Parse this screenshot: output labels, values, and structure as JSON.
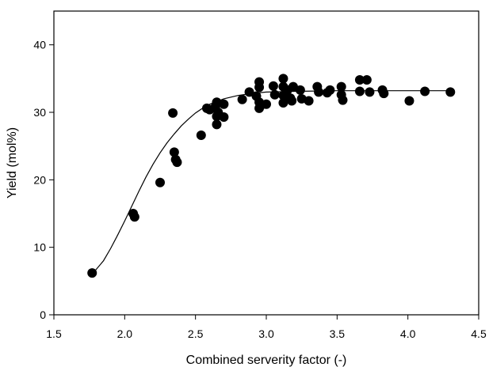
{
  "chart_data": {
    "type": "scatter",
    "title": "",
    "xlabel": "Combined serverity factor (-)",
    "ylabel": "Yield (mol%)",
    "xlim": [
      1.5,
      4.5
    ],
    "ylim": [
      0,
      45
    ],
    "xticks": [
      "1.5",
      "2.0",
      "2.5",
      "3.0",
      "3.5",
      "4.0",
      "4.5"
    ],
    "yticks": [
      "0",
      "10",
      "20",
      "30",
      "40"
    ],
    "grid": false,
    "legend": "none",
    "marker_color": "#000000",
    "series": [
      {
        "type": "scatter",
        "points": [
          [
            1.77,
            6.2
          ],
          [
            2.06,
            15.0
          ],
          [
            2.07,
            14.5
          ],
          [
            2.25,
            19.6
          ],
          [
            2.34,
            29.9
          ],
          [
            2.35,
            24.1
          ],
          [
            2.36,
            23.0
          ],
          [
            2.37,
            22.6
          ],
          [
            2.54,
            26.6
          ],
          [
            2.58,
            30.6
          ],
          [
            2.6,
            30.4
          ],
          [
            2.64,
            30.8
          ],
          [
            2.65,
            31.5
          ],
          [
            2.65,
            29.4
          ],
          [
            2.65,
            28.2
          ],
          [
            2.66,
            30.0
          ],
          [
            2.7,
            31.2
          ],
          [
            2.7,
            29.3
          ],
          [
            2.83,
            31.9
          ],
          [
            2.88,
            33.0
          ],
          [
            2.93,
            32.4
          ],
          [
            2.95,
            34.5
          ],
          [
            2.95,
            33.7
          ],
          [
            2.95,
            31.5
          ],
          [
            2.95,
            30.6
          ],
          [
            2.96,
            31.0
          ],
          [
            3.0,
            31.2
          ],
          [
            3.05,
            33.9
          ],
          [
            3.06,
            32.6
          ],
          [
            3.12,
            35.0
          ],
          [
            3.12,
            33.8
          ],
          [
            3.12,
            32.5
          ],
          [
            3.12,
            31.4
          ],
          [
            3.15,
            33.3
          ],
          [
            3.17,
            32.1
          ],
          [
            3.18,
            31.7
          ],
          [
            3.19,
            33.8
          ],
          [
            3.24,
            33.3
          ],
          [
            3.25,
            32.0
          ],
          [
            3.3,
            31.7
          ],
          [
            3.36,
            33.8
          ],
          [
            3.37,
            33.0
          ],
          [
            3.43,
            32.9
          ],
          [
            3.45,
            33.3
          ],
          [
            3.53,
            33.8
          ],
          [
            3.53,
            32.6
          ],
          [
            3.54,
            31.8
          ],
          [
            3.66,
            34.8
          ],
          [
            3.66,
            33.1
          ],
          [
            3.71,
            34.8
          ],
          [
            3.73,
            33.0
          ],
          [
            3.82,
            33.3
          ],
          [
            3.83,
            32.8
          ],
          [
            4.01,
            31.7
          ],
          [
            4.12,
            33.1
          ],
          [
            4.3,
            33.0
          ]
        ]
      },
      {
        "type": "line",
        "points": [
          [
            1.77,
            6.0
          ],
          [
            1.85,
            8.0
          ],
          [
            1.9,
            9.8
          ],
          [
            1.95,
            11.8
          ],
          [
            2.0,
            13.9
          ],
          [
            2.05,
            16.1
          ],
          [
            2.1,
            18.3
          ],
          [
            2.15,
            20.4
          ],
          [
            2.2,
            22.3
          ],
          [
            2.25,
            24.0
          ],
          [
            2.3,
            25.5
          ],
          [
            2.35,
            26.8
          ],
          [
            2.4,
            28.0
          ],
          [
            2.45,
            29.0
          ],
          [
            2.5,
            29.9
          ],
          [
            2.55,
            30.6
          ],
          [
            2.6,
            31.2
          ],
          [
            2.7,
            32.0
          ],
          [
            2.8,
            32.5
          ],
          [
            2.9,
            32.8
          ],
          [
            3.0,
            33.0
          ],
          [
            3.2,
            33.1
          ],
          [
            3.5,
            33.2
          ],
          [
            4.0,
            33.2
          ],
          [
            4.3,
            33.2
          ]
        ]
      }
    ]
  }
}
